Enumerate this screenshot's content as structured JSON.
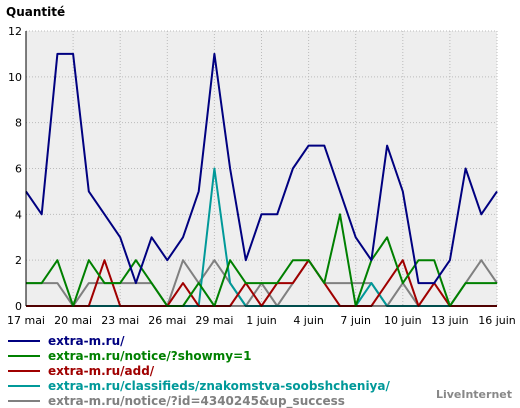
{
  "chart_data": {
    "type": "line",
    "ylabel": "Quantité",
    "ylim": [
      0,
      12
    ],
    "yticks": [
      0,
      2,
      4,
      6,
      8,
      10,
      12
    ],
    "grid": true,
    "legend_position": "bottom",
    "x_tick_labels": [
      "17 mai",
      "20 mai",
      "23 mai",
      "26 mai",
      "29 mai",
      "1 juin",
      "4 juin",
      "7 juin",
      "10 juin",
      "13 juin",
      "16 juin"
    ],
    "x": [
      "17 mai",
      "18 mai",
      "19 mai",
      "20 mai",
      "21 mai",
      "22 mai",
      "23 mai",
      "24 mai",
      "25 mai",
      "26 mai",
      "27 mai",
      "28 mai",
      "29 mai",
      "30 mai",
      "31 mai",
      "1 juin",
      "2 juin",
      "3 juin",
      "4 juin",
      "5 juin",
      "6 juin",
      "7 juin",
      "8 juin",
      "9 juin",
      "10 juin",
      "11 juin",
      "12 juin",
      "13 juin",
      "14 juin",
      "15 juin",
      "16 juin"
    ],
    "series": [
      {
        "name": "extra-m.ru/",
        "color": "#000080",
        "values": [
          5,
          4,
          11,
          11,
          5,
          4,
          3,
          1,
          3,
          2,
          3,
          5,
          11,
          6,
          2,
          4,
          4,
          6,
          7,
          7,
          5,
          3,
          2,
          7,
          5,
          1,
          1,
          2,
          6,
          4,
          5
        ]
      },
      {
        "name": "extra-m.ru/notice/?showmy=1",
        "color": "#008000",
        "values": [
          1,
          1,
          2,
          0,
          2,
          1,
          1,
          2,
          1,
          0,
          0,
          1,
          0,
          2,
          1,
          1,
          1,
          2,
          2,
          1,
          4,
          0,
          2,
          3,
          1,
          2,
          2,
          0,
          1,
          1,
          1
        ]
      },
      {
        "name": "extra-m.ru/add/",
        "color": "#a00000",
        "values": [
          0,
          0,
          0,
          0,
          0,
          2,
          0,
          0,
          0,
          0,
          1,
          0,
          0,
          0,
          1,
          0,
          1,
          1,
          2,
          1,
          0,
          0,
          0,
          1,
          2,
          0,
          1,
          0,
          0,
          0,
          0
        ]
      },
      {
        "name": "extra-m.ru/classifieds/znakomstva-soobshcheniya/",
        "color": "#009999",
        "values": [
          0,
          0,
          0,
          0,
          0,
          0,
          0,
          0,
          0,
          0,
          0,
          0,
          6,
          1,
          0,
          0,
          0,
          0,
          0,
          0,
          0,
          0,
          1,
          0,
          0,
          0,
          0,
          0,
          0,
          0,
          0
        ]
      },
      {
        "name": "extra-m.ru/notice/?id=4340245&up_success",
        "color": "#808080",
        "values": [
          1,
          1,
          1,
          0,
          1,
          1,
          1,
          1,
          1,
          0,
          2,
          1,
          2,
          1,
          0,
          1,
          0,
          1,
          2,
          1,
          1,
          1,
          1,
          0,
          1,
          0,
          0,
          0,
          1,
          2,
          1
        ]
      }
    ]
  },
  "credit": "LiveInternet"
}
